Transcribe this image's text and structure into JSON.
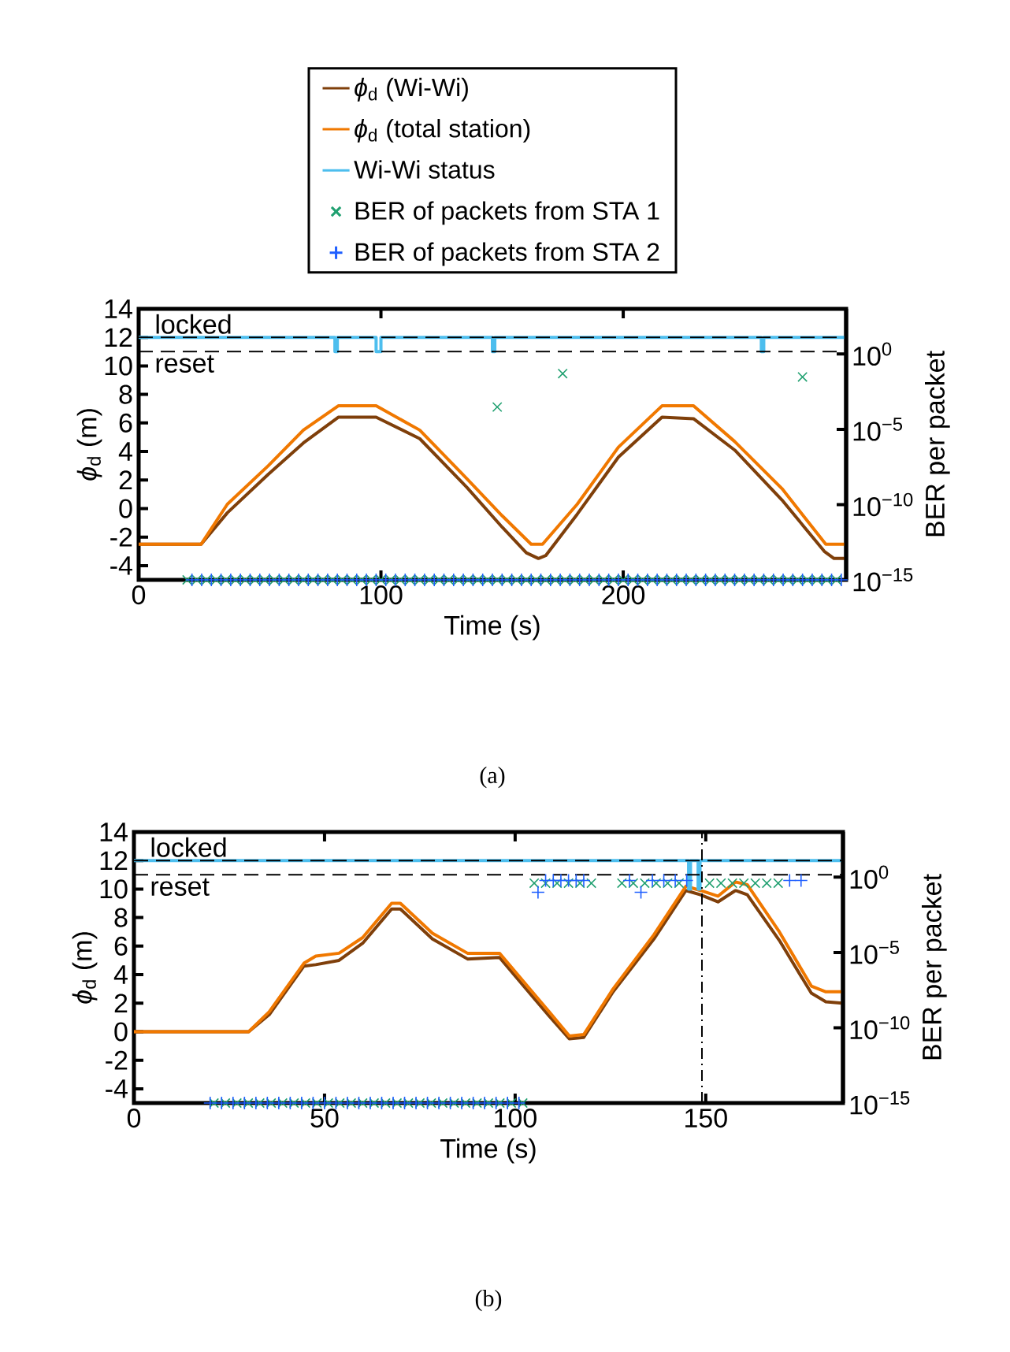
{
  "chart_data": [
    {
      "type": "line",
      "xlabel": "Time (s)",
      "ylabel": "*ϕ*$_{d}$ (m)",
      "y2label": "BER per packet",
      "log": "y2",
      "legend": "top",
      "xlim": [
        0,
        292
      ],
      "xticks": [
        0,
        100,
        200
      ],
      "ylim": [
        -5,
        14
      ],
      "yticks": [
        -4,
        -2,
        0,
        2,
        4,
        6,
        8,
        10,
        12,
        14
      ],
      "y2lim": [
        1e-15,
        1000
      ],
      "y2ticks": [
        {
          "value": 1e-15,
          "label": "10$^{−15}$"
        },
        {
          "value": 1e-10,
          "label": "10$^{−10}$"
        },
        {
          "value": 1e-05,
          "label": "10$^{−5}$"
        },
        {
          "value": 1,
          "label": "10$^{0}$"
        }
      ],
      "ref_lines": [
        {
          "axis": "y",
          "value": 12,
          "label": "locked",
          "color": "#000000",
          "line_style": "dashed"
        },
        {
          "axis": "y",
          "value": 11,
          "label": "reset",
          "color": "#000000",
          "line_style": "dashed"
        }
      ],
      "annotations": [
        "(a)"
      ],
      "series": [
        {
          "name": "*ϕ*$_{d}$ (Wi-Wi)",
          "color": "#7f3f0a",
          "x": [
            0,
            25.8,
            36.6,
            53.5,
            68,
            82.4,
            98,
            116,
            135.4,
            150,
            160,
            165,
            168,
            181,
            198,
            216,
            229,
            246,
            265.5,
            283,
            287,
            292
          ],
          "values": [
            -2.5,
            -2.5,
            -0.3,
            2.4,
            4.6,
            6.4,
            6.4,
            4.9,
            1.5,
            -1.3,
            -3.1,
            -3.5,
            -3.3,
            -0.4,
            3.6,
            6.4,
            6.3,
            4.1,
            0.6,
            -3.0,
            -3.5,
            -3.5
          ]
        },
        {
          "name": "*ϕ*$_{d}$ (total station)",
          "color": "#f07800",
          "x": [
            0,
            25.8,
            36.6,
            53.5,
            68,
            82.4,
            98,
            116,
            135.4,
            150,
            162,
            166.7,
            181,
            198,
            216,
            229,
            246,
            265.5,
            283.6,
            292
          ],
          "values": [
            -2.5,
            -2.5,
            0.3,
            3.0,
            5.5,
            7.2,
            7.2,
            5.5,
            2.1,
            -0.5,
            -2.5,
            -2.5,
            0.3,
            4.3,
            7.2,
            7.2,
            4.7,
            1.4,
            -2.5,
            -2.5
          ]
        },
        {
          "name": "Wi-Wi status",
          "color": "#4dbeee",
          "x": [
            0,
            81,
            81,
            82,
            82,
            98,
            98,
            100,
            100,
            146,
            146,
            147,
            147,
            257,
            257,
            258,
            258,
            292
          ],
          "values": [
            12,
            12,
            11,
            11,
            12,
            12,
            11,
            11,
            12,
            12,
            11,
            11,
            12,
            12,
            11,
            11,
            12,
            12
          ]
        },
        {
          "name": "BER of packets from STA 1",
          "type": "scatter",
          "axis": "y2",
          "marker": "cross",
          "color": "#20a070",
          "x": [
            148,
            175,
            274,
            20,
            24,
            28,
            32,
            36,
            40,
            44,
            48,
            52,
            56,
            60,
            64,
            68,
            72,
            76,
            80,
            84,
            88,
            92,
            96,
            100,
            104,
            108,
            112,
            116,
            120,
            124,
            128,
            132,
            136,
            140,
            144,
            148,
            152,
            156,
            160,
            164,
            168,
            172,
            176,
            180,
            184,
            188,
            192,
            196,
            200,
            204,
            208,
            212,
            216,
            220,
            224,
            228,
            232,
            236,
            240,
            244,
            248,
            252,
            256,
            260,
            264,
            268,
            272,
            276,
            280,
            284,
            288
          ],
          "values": [
            0.0003,
            0.05,
            0.03,
            1e-15,
            1e-15,
            1e-15,
            1e-15,
            1e-15,
            1e-15,
            1e-15,
            1e-15,
            1e-15,
            1e-15,
            1e-15,
            1e-15,
            1e-15,
            1e-15,
            1e-15,
            1e-15,
            1e-15,
            1e-15,
            1e-15,
            1e-15,
            1e-15,
            1e-15,
            1e-15,
            1e-15,
            1e-15,
            1e-15,
            1e-15,
            1e-15,
            1e-15,
            1e-15,
            1e-15,
            1e-15,
            1e-15,
            1e-15,
            1e-15,
            1e-15,
            1e-15,
            1e-15,
            1e-15,
            1e-15,
            1e-15,
            1e-15,
            1e-15,
            1e-15,
            1e-15,
            1e-15,
            1e-15,
            1e-15,
            1e-15,
            1e-15,
            1e-15,
            1e-15,
            1e-15,
            1e-15,
            1e-15,
            1e-15,
            1e-15,
            1e-15,
            1e-15,
            1e-15,
            1e-15,
            1e-15,
            1e-15,
            1e-15,
            1e-15,
            1e-15,
            1e-15,
            1e-15
          ]
        },
        {
          "name": "BER of packets from STA 2",
          "type": "scatter",
          "axis": "y2",
          "marker": "plus",
          "color": "#1f5fff",
          "x": [
            22,
            26,
            30,
            34,
            38,
            42,
            46,
            50,
            54,
            58,
            62,
            66,
            70,
            74,
            78,
            82,
            86,
            90,
            94,
            98,
            102,
            106,
            110,
            114,
            118,
            122,
            126,
            130,
            134,
            138,
            142,
            146,
            150,
            154,
            158,
            162,
            166,
            170,
            174,
            178,
            182,
            186,
            190,
            194,
            198,
            202,
            206,
            210,
            214,
            218,
            222,
            226,
            230,
            234,
            238,
            242,
            246,
            250,
            254,
            258,
            262,
            266,
            270,
            274,
            278,
            282,
            286,
            290
          ],
          "values": [
            1e-15,
            1e-15,
            1e-15,
            1e-15,
            1e-15,
            1e-15,
            1e-15,
            1e-15,
            1e-15,
            1e-15,
            1e-15,
            1e-15,
            1e-15,
            1e-15,
            1e-15,
            1e-15,
            1e-15,
            1e-15,
            1e-15,
            1e-15,
            1e-15,
            1e-15,
            1e-15,
            1e-15,
            1e-15,
            1e-15,
            1e-15,
            1e-15,
            1e-15,
            1e-15,
            1e-15,
            1e-15,
            1e-15,
            1e-15,
            1e-15,
            1e-15,
            1e-15,
            1e-15,
            1e-15,
            1e-15,
            1e-15,
            1e-15,
            1e-15,
            1e-15,
            1e-15,
            1e-15,
            1e-15,
            1e-15,
            1e-15,
            1e-15,
            1e-15,
            1e-15,
            1e-15,
            1e-15,
            1e-15,
            1e-15,
            1e-15,
            1e-15,
            1e-15,
            1e-15,
            1e-15,
            1e-15,
            1e-15,
            1e-15,
            1e-15,
            1e-15,
            1e-15,
            1e-15
          ]
        }
      ]
    },
    {
      "type": "line",
      "xlabel": "Time (s)",
      "ylabel": "*ϕ*$_{d}$ (m)",
      "y2label": "BER per packet",
      "log": "y2",
      "xlim": [
        0,
        186
      ],
      "xticks": [
        0,
        50,
        100,
        150
      ],
      "ylim": [
        -5,
        14
      ],
      "yticks": [
        -4,
        -2,
        0,
        2,
        4,
        6,
        8,
        10,
        12,
        14
      ],
      "y2lim": [
        1e-15,
        1000
      ],
      "y2ticks": [
        {
          "value": 1e-15,
          "label": "10$^{−15}$"
        },
        {
          "value": 1e-10,
          "label": "10$^{−10}$"
        },
        {
          "value": 1e-05,
          "label": "10$^{−5}$"
        },
        {
          "value": 1,
          "label": "10$^{0}$"
        }
      ],
      "ref_lines": [
        {
          "axis": "y",
          "value": 12,
          "label": "locked",
          "color": "#000000",
          "line_style": "dashed"
        },
        {
          "axis": "y",
          "value": 11,
          "label": "reset",
          "color": "#000000",
          "line_style": "dashed"
        },
        {
          "axis": "x",
          "value": 149,
          "color": "#000000",
          "line_style": "dashdot"
        }
      ],
      "annotations": [
        "(b)"
      ],
      "series": [
        {
          "color": "#7f3f0a",
          "x": [
            0,
            30.1,
            35.5,
            44.6,
            47.7,
            53.8,
            60,
            67.6,
            69.9,
            78.3,
            87.5,
            95.9,
            99.7,
            108.9,
            114.2,
            118,
            125.7,
            136.4,
            144.8,
            148.6,
            153.2,
            157.8,
            160.9,
            169.3,
            177.7,
            181.5,
            185.8
          ],
          "values": [
            0,
            0,
            1.2,
            4.6,
            4.7,
            5.0,
            6.2,
            8.6,
            8.6,
            6.5,
            5.1,
            5.2,
            4.0,
            1.1,
            -0.5,
            -0.4,
            2.8,
            6.5,
            9.9,
            9.6,
            9.1,
            9.9,
            9.6,
            6.4,
            2.7,
            2.1,
            2.0
          ]
        },
        {
          "color": "#f07800",
          "x": [
            0,
            30.1,
            35.5,
            44.6,
            47.7,
            53.8,
            60,
            67.6,
            69.9,
            78.3,
            87.5,
            95.9,
            99.7,
            108.9,
            114.2,
            118,
            125.7,
            136.4,
            144.8,
            148.6,
            153.2,
            157.8,
            160.9,
            169.3,
            177.7,
            181.5,
            185.8
          ],
          "values": [
            0,
            0,
            1.4,
            4.8,
            5.3,
            5.5,
            6.6,
            9.0,
            9.0,
            6.9,
            5.5,
            5.5,
            4.3,
            1.4,
            -0.3,
            -0.2,
            3.0,
            6.8,
            10.2,
            9.9,
            9.5,
            10.5,
            10.3,
            7.0,
            3.2,
            2.8,
            2.8
          ]
        },
        {
          "color": "#4dbeee",
          "x": [
            0,
            145.5,
            145.5,
            146,
            146,
            148,
            148,
            148.5,
            148.5,
            186
          ],
          "values": [
            12,
            12,
            10,
            10,
            12,
            12,
            10,
            10,
            12,
            12
          ]
        },
        {
          "type": "scatter",
          "axis": "y2",
          "marker": "cross",
          "color": "#20a070",
          "x": [
            105,
            108,
            111,
            114,
            117,
            120,
            128,
            131,
            134,
            137,
            140,
            143,
            151,
            154,
            157,
            160,
            163,
            166,
            169,
            21,
            24,
            27,
            30,
            33,
            36,
            39,
            42,
            45,
            48,
            51,
            54,
            57,
            60,
            63,
            66,
            69,
            72,
            75,
            78,
            81,
            84,
            87,
            90,
            93,
            96,
            99,
            102
          ],
          "values": [
            0.4,
            0.4,
            0.4,
            0.4,
            0.4,
            0.4,
            0.4,
            0.4,
            0.4,
            0.4,
            0.4,
            0.4,
            0.4,
            0.4,
            0.4,
            0.4,
            0.4,
            0.4,
            0.4,
            1e-15,
            1e-15,
            1e-15,
            1e-15,
            1e-15,
            1e-15,
            1e-15,
            1e-15,
            1e-15,
            1e-15,
            1e-15,
            1e-15,
            1e-15,
            1e-15,
            1e-15,
            1e-15,
            1e-15,
            1e-15,
            1e-15,
            1e-15,
            1e-15,
            1e-15,
            1e-15,
            1e-15,
            1e-15,
            1e-15,
            1e-15,
            1e-15
          ]
        },
        {
          "type": "scatter",
          "axis": "y2",
          "marker": "plus",
          "color": "#1f5fff",
          "x": [
            106,
            108,
            110,
            112,
            114,
            116,
            118,
            130,
            133,
            136,
            139,
            142,
            145,
            172,
            175,
            20,
            23,
            26,
            29,
            32,
            35,
            38,
            41,
            44,
            47,
            50,
            53,
            56,
            59,
            62,
            65,
            68,
            71,
            74,
            77,
            80,
            83,
            86,
            89,
            92,
            95,
            98,
            101
          ],
          "values": [
            0.1,
            0.6,
            0.6,
            0.6,
            0.6,
            0.6,
            0.6,
            0.6,
            0.1,
            0.6,
            0.6,
            0.6,
            0.6,
            0.6,
            0.6,
            1e-15,
            1e-15,
            1e-15,
            1e-15,
            1e-15,
            1e-15,
            1e-15,
            1e-15,
            1e-15,
            1e-15,
            1e-15,
            1e-15,
            1e-15,
            1e-15,
            1e-15,
            1e-15,
            1e-15,
            1e-15,
            1e-15,
            1e-15,
            1e-15,
            1e-15,
            1e-15,
            1e-15,
            1e-15,
            1e-15,
            1e-15,
            1e-15
          ]
        }
      ]
    }
  ]
}
